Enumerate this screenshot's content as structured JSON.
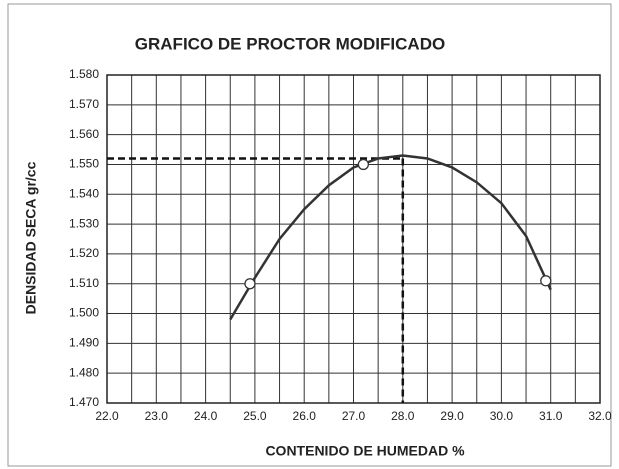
{
  "chart_data": {
    "type": "line",
    "title": "GRAFICO DE PROCTOR MODIFICADO",
    "xlabel": "CONTENIDO DE HUMEDAD %",
    "ylabel": "DENSIDAD SECA gr/cc",
    "xlim": [
      22.0,
      32.0
    ],
    "ylim": [
      1.47,
      1.58
    ],
    "xticks": [
      {
        "value": 22,
        "label": "22.0"
      },
      {
        "value": 23,
        "label": "23.0"
      },
      {
        "value": 24,
        "label": "24.0"
      },
      {
        "value": 25,
        "label": "25.0"
      },
      {
        "value": 26,
        "label": "26.0"
      },
      {
        "value": 27,
        "label": "27.0"
      },
      {
        "value": 28,
        "label": "28.0"
      },
      {
        "value": 29,
        "label": "29.0"
      },
      {
        "value": 30,
        "label": "30.0"
      },
      {
        "value": 31,
        "label": "31.0"
      },
      {
        "value": 32,
        "label": "32.0"
      }
    ],
    "yticks": [
      {
        "value": 1.47,
        "label": "1.470"
      },
      {
        "value": 1.48,
        "label": "1.480"
      },
      {
        "value": 1.49,
        "label": "1.490"
      },
      {
        "value": 1.5,
        "label": "1.500"
      },
      {
        "value": 1.51,
        "label": "1.510"
      },
      {
        "value": 1.52,
        "label": "1.520"
      },
      {
        "value": 1.53,
        "label": "1.530"
      },
      {
        "value": 1.54,
        "label": "1.540"
      },
      {
        "value": 1.55,
        "label": "1.550"
      },
      {
        "value": 1.56,
        "label": "1.560"
      },
      {
        "value": 1.57,
        "label": "1.570"
      },
      {
        "value": 1.58,
        "label": "1.580"
      }
    ],
    "grid": true,
    "curve": {
      "color": "#333333",
      "x": [
        24.5,
        25,
        25.5,
        26,
        26.5,
        27,
        27.5,
        28,
        28.5,
        29,
        29.5,
        30,
        30.5,
        31
      ],
      "values": [
        1.498,
        1.512,
        1.525,
        1.535,
        1.543,
        1.549,
        1.552,
        1.553,
        1.552,
        1.549,
        1.544,
        1.537,
        1.526,
        1.508
      ]
    },
    "points": {
      "color": "#333333",
      "x": [
        24.9,
        27.2,
        30.9
      ],
      "values": [
        1.51,
        1.55,
        1.511
      ]
    },
    "optimum": {
      "x": 28.0,
      "y": 1.552
    }
  }
}
